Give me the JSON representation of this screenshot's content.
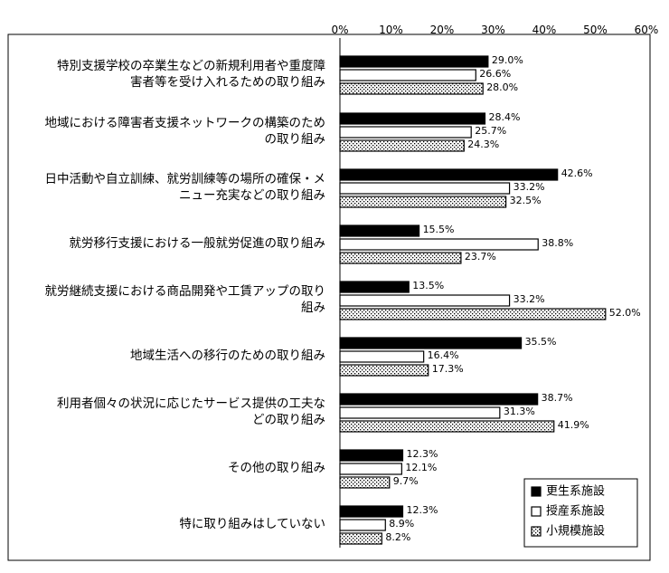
{
  "chart_data": {
    "type": "bar",
    "orientation": "horizontal",
    "categories": [
      [
        "特別支援学校の卒業生などの新規利用者や重度障",
        "害者等を受け入れるための取り組み"
      ],
      [
        "地域における障害者支援ネットワークの構築のため",
        "の取り組み"
      ],
      [
        "日中活動や自立訓練、就労訓練等の場所の確保・メ",
        "ニュー充実などの取り組み"
      ],
      [
        "就労移行支援における一般就労促進の取り組み"
      ],
      [
        "就労継続支援における商品開発や工賃アップの取り",
        "組み"
      ],
      [
        "地域生活への移行のための取り組み"
      ],
      [
        "利用者個々の状況に応じたサービス提供の工夫な",
        "どの取り組み"
      ],
      [
        "その他の取り組み"
      ],
      [
        "特に取り組みはしていない"
      ]
    ],
    "series": [
      {
        "name": "更生系施設",
        "values": [
          29.0,
          28.4,
          42.6,
          15.5,
          13.5,
          35.5,
          38.7,
          12.3,
          12.3
        ],
        "labels": [
          "29.0%",
          "28.4%",
          "42.6%",
          "15.5%",
          "13.5%",
          "35.5%",
          "38.7%",
          "12.3%",
          "12.3%"
        ]
      },
      {
        "name": "授産系施設",
        "values": [
          26.6,
          25.7,
          33.2,
          38.8,
          33.2,
          16.4,
          31.3,
          12.1,
          8.9
        ],
        "labels": [
          "26.6%",
          "25.7%",
          "33.2%",
          "38.8%",
          "33.2%",
          "16.4%",
          "31.3%",
          "12.1%",
          "8.9%"
        ]
      },
      {
        "name": "小規模施設",
        "values": [
          28.0,
          24.3,
          32.5,
          23.7,
          52.0,
          17.3,
          41.9,
          9.7,
          8.2
        ],
        "labels": [
          "28.0%",
          "24.3%",
          "32.5%",
          "23.7%",
          "52.0%",
          "17.3%",
          "41.9%",
          "9.7%",
          "8.2%"
        ]
      }
    ],
    "xlim": [
      0,
      60
    ],
    "xticks": [
      0,
      10,
      20,
      30,
      40,
      50,
      60
    ],
    "xtick_labels": [
      "0%",
      "10%",
      "20%",
      "30%",
      "40%",
      "50%",
      "60%"
    ],
    "legend_position": "bottom-right",
    "series_styles": [
      {
        "fill": "#000000",
        "pattern": "solid"
      },
      {
        "fill": "#ffffff",
        "pattern": "none"
      },
      {
        "fill": "#ffffff",
        "pattern": "dots"
      }
    ],
    "grid": false,
    "title": "",
    "xlabel": "",
    "ylabel": ""
  }
}
